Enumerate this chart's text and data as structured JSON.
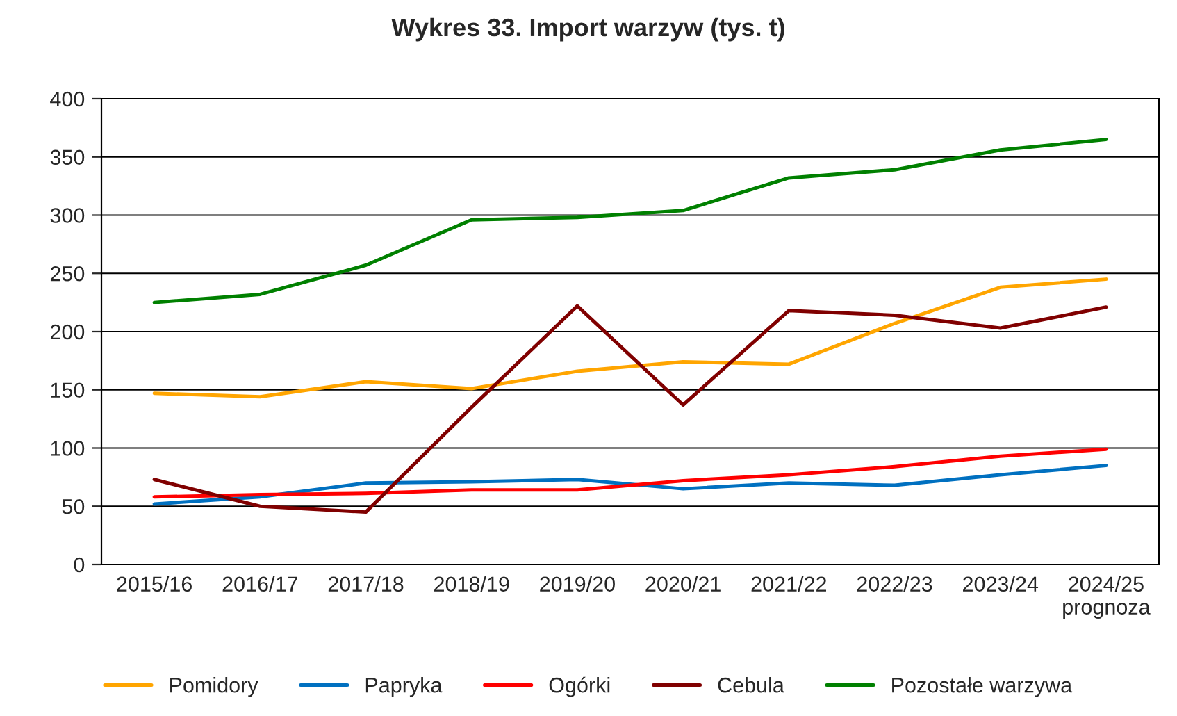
{
  "chart_data": {
    "type": "line",
    "title": "Wykres 33. Import warzyw (tys. t)",
    "categories": [
      "2015/16",
      "2016/17",
      "2017/18",
      "2018/19",
      "2019/20",
      "2020/21",
      "2021/22",
      "2022/23",
      "2023/24",
      "2024/25\nprognoza"
    ],
    "series": [
      {
        "name": "Pomidory",
        "color": "#ffa500",
        "values": [
          147,
          144,
          157,
          151,
          166,
          174,
          172,
          207,
          238,
          245
        ]
      },
      {
        "name": "Papryka",
        "color": "#0070c0",
        "values": [
          52,
          58,
          70,
          71,
          73,
          65,
          70,
          68,
          77,
          85
        ]
      },
      {
        "name": "Ogórki",
        "color": "#ff0000",
        "values": [
          58,
          60,
          61,
          64,
          64,
          72,
          77,
          84,
          93,
          99
        ]
      },
      {
        "name": "Cebula",
        "color": "#800000",
        "values": [
          73,
          50,
          45,
          135,
          222,
          137,
          218,
          214,
          203,
          221
        ]
      },
      {
        "name": "Pozostałe warzywa",
        "color": "#008000",
        "values": [
          225,
          232,
          257,
          296,
          298,
          304,
          332,
          339,
          356,
          365
        ]
      }
    ],
    "ylim": [
      0,
      400
    ],
    "yticks": [
      0,
      50,
      100,
      150,
      200,
      250,
      300,
      350,
      400
    ],
    "grid": "y",
    "legend": "bottom"
  }
}
